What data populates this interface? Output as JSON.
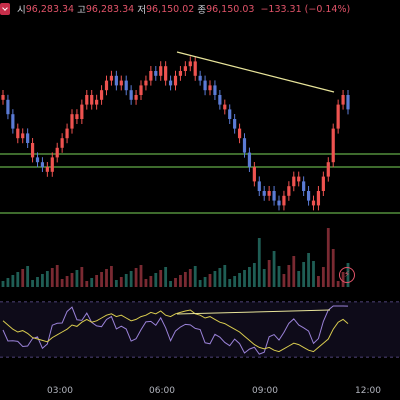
{
  "ohlc": {
    "open_label": "시",
    "open": "96,283.34",
    "high_label": "고",
    "high": "96,283.34",
    "low_label": "저",
    "low": "96,150.02",
    "close_label": "종",
    "close": "96,150.03",
    "change": "−133.31 (−0.14%)"
  },
  "x_ticks": [
    "03:00",
    "06:00",
    "09:00",
    "12:00"
  ],
  "colors": {
    "up": "#26a69a",
    "down_red": "#ef5350",
    "down_blue": "#5b7bd5",
    "level_line": "#7cd65a",
    "trend_line": "#e8e49a",
    "rsi_line": "#9a82d8",
    "rsi_ma": "#d9cc4f"
  },
  "icons": {
    "collapse": "chevron-down-icon",
    "alert": "lightning-icon"
  },
  "chart_data": {
    "type": "candlestick",
    "x_ticks": [
      "03:00",
      "06:00",
      "09:00",
      "12:00"
    ],
    "close": [
      96.9,
      96.6,
      96.3,
      96.1,
      96.2,
      96.0,
      95.7,
      95.6,
      95.5,
      95.4,
      95.7,
      95.9,
      96.1,
      96.3,
      96.6,
      96.5,
      96.8,
      97.0,
      96.8,
      96.9,
      97.1,
      97.3,
      97.4,
      97.2,
      97.3,
      97.1,
      96.9,
      97.0,
      97.2,
      97.3,
      97.5,
      97.4,
      97.6,
      97.3,
      97.2,
      97.4,
      97.5,
      97.6,
      97.7,
      97.4,
      97.3,
      97.1,
      97.2,
      97.0,
      96.8,
      96.7,
      96.5,
      96.3,
      96.1,
      95.8,
      95.5,
      95.2,
      95.0,
      94.9,
      95.0,
      94.8,
      94.7,
      94.9,
      95.1,
      95.3,
      95.2,
      95.0,
      94.8,
      94.7,
      95.0,
      95.3,
      95.6,
      96.3,
      96.8,
      97.0,
      96.7
    ],
    "levels": [
      "upper",
      "middle",
      "lower"
    ],
    "indicator": "RSI"
  }
}
